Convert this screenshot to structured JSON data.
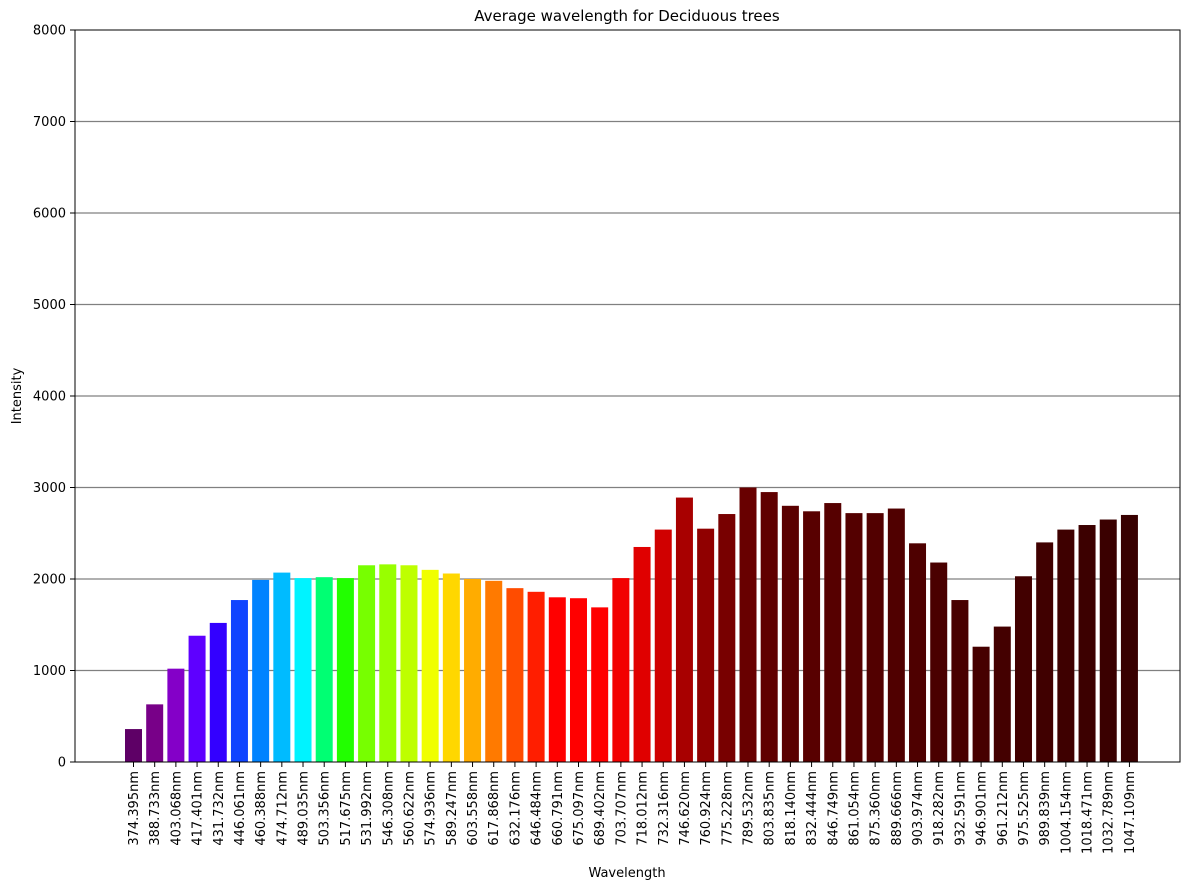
{
  "chart_data": {
    "type": "bar",
    "title": "Average wavelength for Deciduous trees",
    "xlabel": "Wavelength",
    "ylabel": "Intensity",
    "ylim": [
      0,
      8000
    ],
    "yticks": [
      0,
      1000,
      2000,
      3000,
      4000,
      5000,
      6000,
      7000,
      8000
    ],
    "grid": "horizontal",
    "categories": [
      "374.395nm",
      "388.733nm",
      "403.068nm",
      "417.401nm",
      "431.732nm",
      "446.061nm",
      "460.388nm",
      "474.712nm",
      "489.035nm",
      "503.356nm",
      "517.675nm",
      "531.992nm",
      "546.308nm",
      "560.622nm",
      "574.936nm",
      "589.247nm",
      "603.558nm",
      "617.868nm",
      "632.176nm",
      "646.484nm",
      "660.791nm",
      "675.097nm",
      "689.402nm",
      "703.707nm",
      "718.012nm",
      "732.316nm",
      "746.620nm",
      "760.924nm",
      "775.228nm",
      "789.532nm",
      "803.835nm",
      "818.140nm",
      "832.444nm",
      "846.749nm",
      "861.054nm",
      "875.360nm",
      "889.666nm",
      "903.974nm",
      "918.282nm",
      "932.591nm",
      "946.901nm",
      "961.212nm",
      "975.525nm",
      "989.839nm",
      "1004.154nm",
      "1018.471nm",
      "1032.789nm",
      "1047.109nm"
    ],
    "values": [
      360,
      630,
      1020,
      1380,
      1520,
      1770,
      1990,
      2070,
      2010,
      2020,
      2010,
      2150,
      2160,
      2150,
      2100,
      2060,
      2000,
      1980,
      1900,
      1860,
      1800,
      1790,
      1690,
      2010,
      2350,
      2540,
      2890,
      2550,
      2710,
      3000,
      2950,
      2800,
      2740,
      2830,
      2720,
      2720,
      2770,
      2390,
      2180,
      1770,
      1260,
      1480,
      2030,
      2400,
      2540,
      2590,
      2650,
      2700
    ],
    "colors": [
      "#5e0066",
      "#780088",
      "#8400c8",
      "#5e00ff",
      "#3300ff",
      "#1044ff",
      "#0083ff",
      "#00bbff",
      "#00f3ff",
      "#00ff73",
      "#22ff00",
      "#77ff00",
      "#98ff00",
      "#beff00",
      "#f0ff00",
      "#ffd700",
      "#ffac00",
      "#ff7a00",
      "#ff4c00",
      "#ff1e00",
      "#ff0000",
      "#ff0000",
      "#ff0000",
      "#f20000",
      "#e00000",
      "#d00000",
      "#a80000",
      "#900000",
      "#780000",
      "#680000",
      "#600000",
      "#5a0000",
      "#580000",
      "#560000",
      "#540000",
      "#520000",
      "#500000",
      "#4e0000",
      "#4a0000",
      "#480000",
      "#460000",
      "#440000",
      "#420000",
      "#400000",
      "#3e0000",
      "#3c0000",
      "#3a0000",
      "#380000"
    ],
    "grid_color": "#808080"
  }
}
